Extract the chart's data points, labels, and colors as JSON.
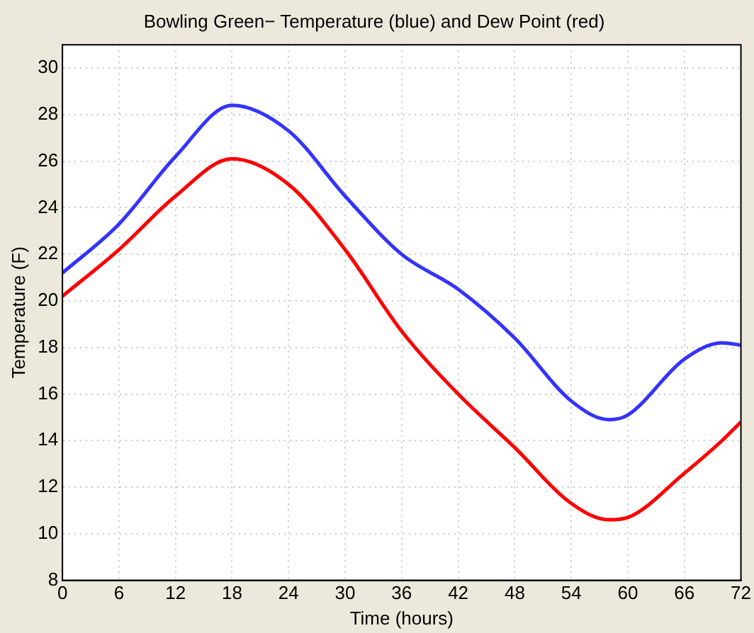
{
  "chart_data": {
    "type": "line",
    "title": "Bowling Green− Temperature (blue) and Dew Point (red)",
    "xlabel": "Time (hours)",
    "ylabel": "Temperature (F)",
    "x": [
      0,
      6,
      12,
      18,
      24,
      30,
      36,
      42,
      48,
      54,
      58,
      60,
      66,
      70,
      72
    ],
    "series": [
      {
        "color": "#3333ff",
        "values": [
          21.2,
          23.3,
          26.2,
          28.4,
          27.3,
          24.5,
          22.0,
          20.5,
          18.4,
          15.7,
          14.9,
          15.1,
          17.5,
          18.2,
          18.1
        ]
      },
      {
        "color": "#ff0000",
        "values": [
          20.2,
          22.2,
          24.5,
          26.1,
          25.0,
          22.2,
          18.7,
          16.0,
          13.7,
          11.3,
          10.6,
          10.7,
          12.6,
          14.0,
          14.8
        ]
      }
    ],
    "xlim": [
      0,
      72
    ],
    "xticks": [
      0,
      6,
      12,
      18,
      24,
      30,
      36,
      42,
      48,
      54,
      60,
      66,
      72
    ],
    "ylim": [
      8,
      31
    ],
    "yticks": [
      8,
      10,
      12,
      14,
      16,
      18,
      20,
      22,
      24,
      26,
      28,
      30
    ],
    "grid": true,
    "legend": false,
    "marker": "none",
    "line_style": "solid"
  }
}
